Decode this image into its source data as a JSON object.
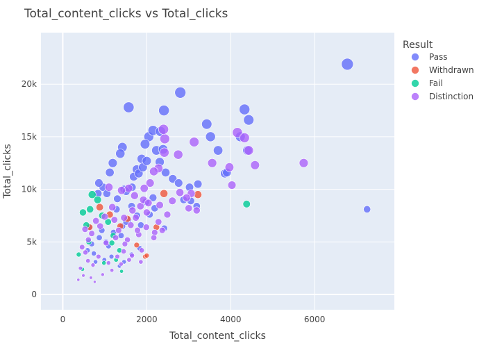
{
  "chart_data": {
    "type": "scatter",
    "title": "Total_content_clicks vs Total_clicks",
    "xlabel": "Total_content_clicks",
    "ylabel": "Total_clicks",
    "xlim": [
      -520,
      7900
    ],
    "ylim": [
      -1450,
      24900
    ],
    "x_ticks": [
      {
        "value": 0,
        "label": "0"
      },
      {
        "value": 2000,
        "label": "2000"
      },
      {
        "value": 4000,
        "label": "4000"
      },
      {
        "value": 6000,
        "label": "6000"
      }
    ],
    "y_ticks": [
      {
        "value": 0,
        "label": "0"
      },
      {
        "value": 5000,
        "label": "5k"
      },
      {
        "value": 10000,
        "label": "10k"
      },
      {
        "value": 15000,
        "label": "15k"
      },
      {
        "value": 20000,
        "label": "20k"
      }
    ],
    "grid": true,
    "legend_title": "Result",
    "legend_position": "right",
    "marker_size": "scaled by value",
    "series": [
      {
        "name": "Pass",
        "color": "#636efa",
        "x": [
          6780,
          7250,
          2800,
          1570,
          2410,
          4330,
          4430,
          3430,
          3520,
          4230,
          3700,
          3860,
          3910,
          4400,
          2050,
          1960,
          2150,
          2330,
          2450,
          2620,
          2760,
          3020,
          3220,
          3050,
          3190,
          2880,
          2310,
          1880,
          2230,
          2390,
          1420,
          1370,
          1760,
          1690,
          1810,
          1910,
          2000,
          1650,
          1460,
          1190,
          1120,
          960,
          860,
          840,
          1050,
          1300,
          1510,
          1280,
          1640,
          1980,
          2150,
          1770,
          1560,
          1420,
          2070,
          2190,
          1860,
          1390,
          1210,
          1030,
          870,
          930,
          690,
          740,
          590,
          780,
          620,
          1090,
          1160,
          990,
          1460,
          1350,
          1640,
          2420,
          1830,
          1510
        ],
        "y": [
          21900,
          8100,
          19200,
          17800,
          17500,
          17600,
          16600,
          16200,
          15000,
          15000,
          13700,
          11500,
          11600,
          13700,
          15000,
          14300,
          15600,
          15500,
          11600,
          11000,
          10600,
          10200,
          10500,
          8900,
          8400,
          9000,
          12600,
          12900,
          13700,
          13800,
          14000,
          13400,
          11900,
          11200,
          11500,
          12100,
          12700,
          10200,
          10000,
          12500,
          11600,
          10200,
          10600,
          9600,
          9600,
          9100,
          9800,
          8100,
          8400,
          8800,
          9200,
          7500,
          7100,
          6500,
          7600,
          8200,
          6600,
          5600,
          5900,
          5000,
          5400,
          6100,
          4800,
          3900,
          4200,
          3100,
          6400,
          4600,
          3600,
          3300,
          3100,
          2700,
          3800,
          6300,
          4400,
          6900
        ],
        "size": [
          21900,
          8100,
          19200,
          17800,
          17500,
          17600,
          16600,
          16200,
          15000,
          15000,
          13700,
          11500,
          11600,
          13700,
          15000,
          14300,
          15600,
          15500,
          11600,
          11000,
          10600,
          10200,
          10500,
          8900,
          8400,
          9000,
          12600,
          12900,
          13700,
          13800,
          14000,
          13400,
          11900,
          11200,
          11500,
          12100,
          12700,
          10200,
          10000,
          12500,
          11600,
          10200,
          10600,
          9600,
          9600,
          9100,
          9800,
          8100,
          8400,
          8800,
          9200,
          7500,
          7100,
          6500,
          7600,
          8200,
          6600,
          5600,
          5900,
          5000,
          5400,
          6100,
          4800,
          3900,
          4200,
          3100,
          6400,
          4600,
          3600,
          3300,
          3100,
          2700,
          3800,
          6300,
          4400,
          6900
        ]
      },
      {
        "name": "Withdrawn",
        "color": "#ef553b",
        "x": [
          2410,
          3220,
          2230,
          1960,
          1760,
          2000,
          1540,
          1370,
          640,
          880,
          1120
        ],
        "y": [
          9600,
          9500,
          6400,
          3600,
          4700,
          3700,
          7200,
          6500,
          6400,
          8300,
          7600
        ],
        "size": [
          9600,
          9500,
          6400,
          3600,
          4700,
          3700,
          7200,
          6500,
          6400,
          8300,
          7600
        ]
      },
      {
        "name": "Fail",
        "color": "#00cc96",
        "x": [
          4380,
          1400,
          480,
          560,
          650,
          700,
          830,
          940,
          1080,
          1200,
          1270,
          1350,
          980,
          620,
          380,
          470,
          1170
        ],
        "y": [
          8600,
          2200,
          7800,
          6600,
          8100,
          9500,
          9000,
          7500,
          6900,
          5600,
          3300,
          4200,
          3000,
          5000,
          3800,
          2400,
          4900
        ],
        "size": [
          8600,
          2200,
          7800,
          6600,
          8100,
          9500,
          9000,
          7500,
          6900,
          5600,
          3300,
          4200,
          3000,
          5000,
          3800,
          2400,
          4900
        ]
      },
      {
        "name": "Distinction",
        "color": "#ab63fa",
        "x": [
          5740,
          4160,
          4330,
          4430,
          4580,
          3970,
          4030,
          3560,
          3130,
          3190,
          3000,
          3060,
          2750,
          2430,
          2420,
          2280,
          2400,
          2170,
          2080,
          1940,
          2000,
          1570,
          1710,
          1400,
          1180,
          1230,
          1660,
          1850,
          1740,
          1920,
          2040,
          2310,
          2490,
          2610,
          2790,
          2950,
          2370,
          2190,
          1620,
          1460,
          1330,
          1540,
          1810,
          1990,
          2170,
          1880,
          2280,
          1100,
          1000,
          890,
          790,
          690,
          610,
          530,
          460,
          1030,
          1260,
          1450,
          1580,
          1300,
          1090,
          850,
          720,
          600,
          540,
          420,
          490,
          370,
          950,
          1170,
          1390,
          1650,
          760,
          670,
          1480,
          1780,
          1860
        ],
        "y": [
          12500,
          15400,
          14900,
          13700,
          12300,
          12100,
          10400,
          12500,
          14500,
          8000,
          8200,
          9600,
          13300,
          14800,
          13500,
          12000,
          15700,
          11700,
          10600,
          10100,
          7800,
          10100,
          9400,
          9900,
          8300,
          7100,
          8000,
          8400,
          7300,
          9000,
          8700,
          8500,
          7600,
          8900,
          9700,
          9200,
          6100,
          5900,
          6600,
          7300,
          6100,
          5200,
          5700,
          6400,
          5400,
          4200,
          6900,
          10200,
          7400,
          6500,
          7000,
          5800,
          5200,
          6200,
          4500,
          4900,
          5400,
          4100,
          3300,
          3600,
          3000,
          3600,
          2800,
          3200,
          4000,
          2500,
          1800,
          1400,
          1900,
          2300,
          2900,
          3700,
          1200,
          1600,
          4800,
          6100,
          3100
        ],
        "size": [
          12500,
          15400,
          14900,
          13700,
          12300,
          12100,
          10400,
          12500,
          14500,
          8000,
          8200,
          9600,
          13300,
          14800,
          13500,
          12000,
          15700,
          11700,
          10600,
          10100,
          7800,
          10100,
          9400,
          9900,
          8300,
          7100,
          8000,
          8400,
          7300,
          9000,
          8700,
          8500,
          7600,
          8900,
          9700,
          9200,
          6100,
          5900,
          6600,
          7300,
          6100,
          5200,
          5700,
          6400,
          5400,
          4200,
          6900,
          10200,
          7400,
          6500,
          7000,
          5800,
          5200,
          6200,
          4500,
          4900,
          5400,
          4100,
          3300,
          3600,
          3000,
          3600,
          2800,
          3200,
          4000,
          2500,
          1800,
          1400,
          1900,
          2300,
          2900,
          3700,
          1200,
          1600,
          4800,
          6100,
          3100
        ]
      }
    ]
  }
}
